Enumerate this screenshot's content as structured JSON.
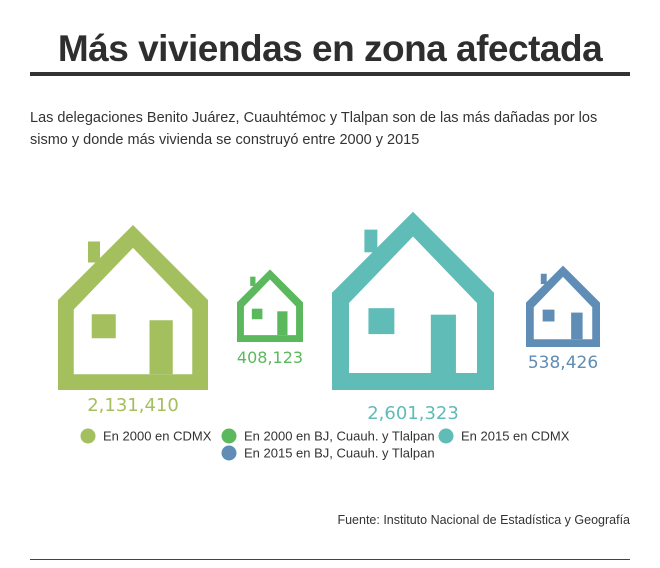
{
  "title": "Más viviendas en zona afectada",
  "subtitle": "Las delegaciones Benito Juárez, Cuauhtémoc y Tlalpan son de las más dañadas por los sismo y donde más vivienda se construyó entre 2000 y 2015",
  "source": "Fuente: Instituto Nacional de Estadística y Geografía",
  "chart_data": {
    "type": "pictogram",
    "mark": "house-icon",
    "series": [
      {
        "name": "En 2000 en CDMX",
        "value": 2131410,
        "label": "2,131,410",
        "color": "#a3bf5e"
      },
      {
        "name": "En 2000 en BJ, Cuauh. y Tlalpan",
        "value": 408123,
        "label": "408,123",
        "color": "#5cb85c"
      },
      {
        "name": "En 2015 en CDMX",
        "value": 2601323,
        "label": "2,601,323",
        "color": "#5fbcb6"
      },
      {
        "name": "En 2015 en BJ, Cuauh. y Tlalpan",
        "value": 538426,
        "label": "538,426",
        "color": "#5f8db5"
      }
    ],
    "legend": {
      "placement": "bottom"
    }
  }
}
